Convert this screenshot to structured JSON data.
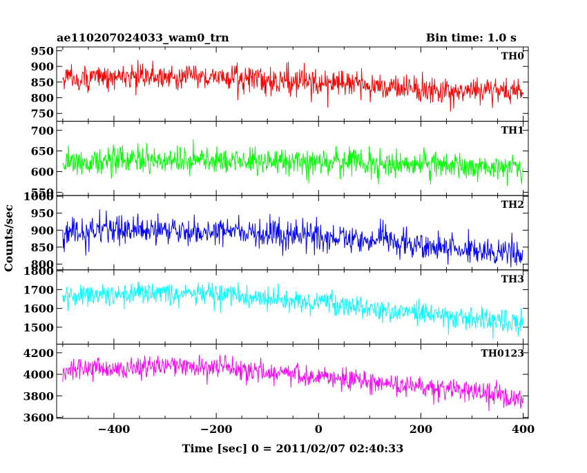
{
  "header": {
    "title": "ae110207024033_wam0_trn",
    "bin_time": "Bin time: 1.0 s"
  },
  "chart_data": {
    "type": "line",
    "xlabel": "Time [sec] 0 = 2011/02/07 02:40:33",
    "ylabel": "Counts/sec",
    "xlim": [
      -512,
      410
    ],
    "x_ticks": [
      -400,
      -200,
      0,
      200,
      400
    ],
    "x_tick_labels": [
      "−400",
      "−200",
      "0",
      "200",
      "400"
    ],
    "x_start": -500,
    "x_end": 400,
    "panels": [
      {
        "name": "TH0",
        "color": "#ff0000",
        "ylim": [
          725,
          962
        ],
        "y_ticks": [
          750,
          800,
          850,
          900,
          950
        ],
        "y_tick_labels": [
          "750",
          "800",
          "850",
          "900",
          "950"
        ],
        "trend": [
          [
            -500,
            862
          ],
          [
            -250,
            870
          ],
          [
            0,
            848
          ],
          [
            200,
            828
          ],
          [
            400,
            820
          ]
        ],
        "noise": 38
      },
      {
        "name": "TH1",
        "color": "#00ff00",
        "ylim": [
          542,
          722
        ],
        "y_ticks": [
          550,
          600,
          650,
          700
        ],
        "y_tick_labels": [
          "550",
          "600",
          "650",
          "700"
        ],
        "trend": [
          [
            -500,
            625
          ],
          [
            -250,
            627
          ],
          [
            0,
            624
          ],
          [
            200,
            617
          ],
          [
            400,
            608
          ]
        ],
        "noise": 30
      },
      {
        "name": "TH2",
        "color": "#0000ff",
        "ylim": [
          783,
          1002
        ],
        "y_ticks": [
          800,
          850,
          900,
          950,
          1000
        ],
        "y_tick_labels": [
          "800",
          "850",
          "900",
          "950",
          "1000"
        ],
        "trend": [
          [
            -500,
            896
          ],
          [
            -250,
            900
          ],
          [
            0,
            882
          ],
          [
            200,
            860
          ],
          [
            400,
            828
          ]
        ],
        "noise": 38
      },
      {
        "name": "TH3",
        "color": "#00ffff",
        "ylim": [
          1410,
          1805
        ],
        "y_ticks": [
          1500,
          1600,
          1700,
          1800
        ],
        "y_tick_labels": [
          "1500",
          "1600",
          "1700",
          "1800"
        ],
        "trend": [
          [
            -500,
            1672
          ],
          [
            -250,
            1680
          ],
          [
            0,
            1630
          ],
          [
            200,
            1575
          ],
          [
            400,
            1520
          ]
        ],
        "noise": 55
      },
      {
        "name": "TH0123",
        "color": "#ff00ff",
        "ylim": [
          3590,
          4280
        ],
        "y_ticks": [
          3600,
          3800,
          4000,
          4200
        ],
        "y_tick_labels": [
          "3600",
          "3800",
          "4000",
          "4200"
        ],
        "trend": [
          [
            -500,
            4040
          ],
          [
            -250,
            4080
          ],
          [
            0,
            3990
          ],
          [
            200,
            3880
          ],
          [
            400,
            3760
          ]
        ],
        "noise": 95
      }
    ]
  }
}
